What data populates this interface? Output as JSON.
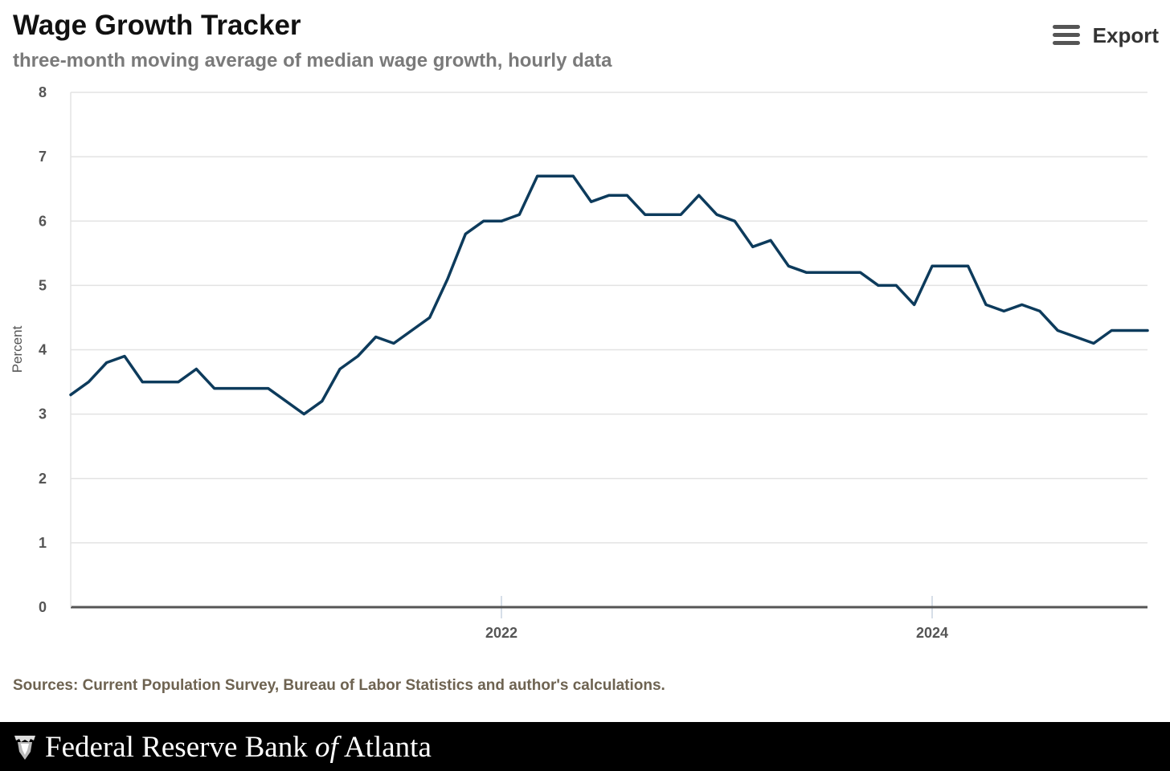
{
  "header": {
    "title": "Wage Growth Tracker",
    "subtitle": "three-month moving average of median wage growth, hourly data",
    "export_label": "Export",
    "export_icon": "menu-icon"
  },
  "sources": "Sources: Current Population Survey, Bureau of Labor Statistics and author's calculations.",
  "footer": {
    "text_part1": "Federal Reserve Bank ",
    "text_part2": "of",
    "text_part3": " Atlanta",
    "logo_icon": "federal-reserve-eagle-icon"
  },
  "colors": {
    "line": "#0d3b5c",
    "grid": "#e3e3e3",
    "axis": "#555555",
    "footer_bg": "#000000"
  },
  "chart_data": {
    "type": "line",
    "title": "Wage Growth Tracker",
    "subtitle": "three-month moving average of median wage growth, hourly data",
    "xlabel": "",
    "ylabel": "Percent",
    "ylim": [
      0,
      8
    ],
    "yticks": [
      0,
      1,
      2,
      3,
      4,
      5,
      6,
      7,
      8
    ],
    "x_range": [
      "2020-01",
      "2025-01"
    ],
    "xticks": [
      {
        "date": "2022-01",
        "label": "2022"
      },
      {
        "date": "2024-01",
        "label": "2024"
      }
    ],
    "grid": true,
    "legend": "none",
    "series": [
      {
        "x": [
          "2020-01",
          "2020-02",
          "2020-03",
          "2020-04",
          "2020-05",
          "2020-06",
          "2020-07",
          "2020-08",
          "2020-09",
          "2020-10",
          "2020-11",
          "2020-12",
          "2021-01",
          "2021-02",
          "2021-03",
          "2021-04",
          "2021-05",
          "2021-06",
          "2021-07",
          "2021-08",
          "2021-09",
          "2021-10",
          "2021-11",
          "2021-12",
          "2022-01",
          "2022-02",
          "2022-03",
          "2022-04",
          "2022-05",
          "2022-06",
          "2022-07",
          "2022-08",
          "2022-09",
          "2022-10",
          "2022-11",
          "2022-12",
          "2023-01",
          "2023-02",
          "2023-03",
          "2023-04",
          "2023-05",
          "2023-06",
          "2023-07",
          "2023-08",
          "2023-09",
          "2023-10",
          "2023-11",
          "2023-12",
          "2024-01",
          "2024-02",
          "2024-03",
          "2024-04",
          "2024-05",
          "2024-06",
          "2024-07",
          "2024-08",
          "2024-09",
          "2024-10",
          "2024-11",
          "2024-12",
          "2025-01"
        ],
        "values": [
          3.3,
          3.5,
          3.8,
          3.9,
          3.5,
          3.5,
          3.5,
          3.7,
          3.4,
          3.4,
          3.4,
          3.4,
          3.2,
          3.0,
          3.2,
          3.7,
          3.9,
          4.2,
          4.1,
          4.3,
          4.5,
          5.1,
          5.8,
          6.0,
          6.0,
          6.1,
          6.7,
          6.7,
          6.7,
          6.3,
          6.4,
          6.4,
          6.1,
          6.1,
          6.1,
          6.4,
          6.1,
          6.0,
          5.6,
          5.7,
          5.3,
          5.2,
          5.2,
          5.2,
          5.2,
          5.0,
          5.0,
          4.7,
          5.3,
          5.3,
          5.3,
          4.7,
          4.6,
          4.7,
          4.6,
          4.3,
          4.2,
          4.1,
          4.3,
          4.3,
          4.3
        ]
      }
    ]
  }
}
